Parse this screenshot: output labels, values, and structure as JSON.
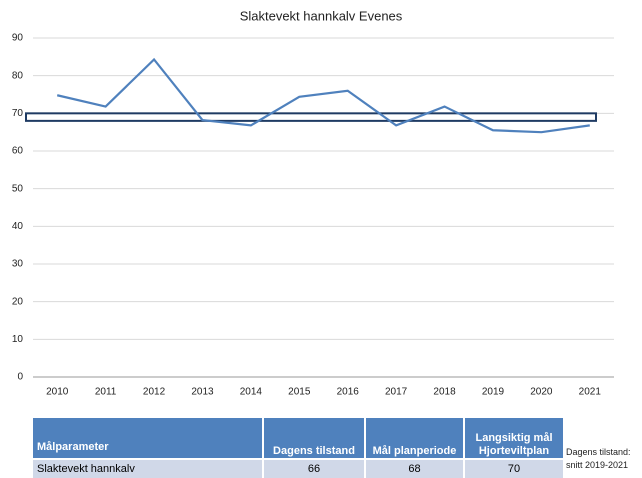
{
  "chart_data": {
    "type": "line",
    "title": "Slaktevekt hannkalv Evenes",
    "categories": [
      "2010",
      "2011",
      "2012",
      "2013",
      "2014",
      "2015",
      "2016",
      "2017",
      "2018",
      "2019",
      "2020",
      "2021"
    ],
    "series": [
      {
        "name": "Slaktevekt hannkalv",
        "color": "#4f81bd",
        "values": [
          74.8,
          71.8,
          84.3,
          68.2,
          66.8,
          74.4,
          76,
          66.8,
          71.8,
          65.5,
          65,
          66.8
        ]
      }
    ],
    "band": {
      "from": 68,
      "to": 70,
      "color": "#1f3b63"
    },
    "ylim": [
      0,
      90
    ],
    "yticks": [
      0,
      10,
      20,
      30,
      40,
      50,
      60,
      70,
      80,
      90
    ],
    "grid": true
  },
  "table": {
    "header": [
      "Målparameter",
      "Dagens tilstand",
      "Mål planperiode",
      "Langsiktig mål Hjorteviltplan"
    ],
    "rows": [
      [
        "Slaktevekt hannkalv",
        "66",
        "68",
        "70"
      ]
    ]
  },
  "note": [
    "Dagens tilstand:",
    "snitt 2019-2021"
  ]
}
